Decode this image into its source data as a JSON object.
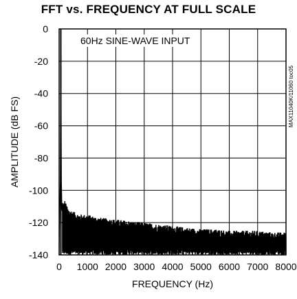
{
  "chart_data": {
    "type": "line",
    "title": "FFT vs. FREQUENCY AT FULL SCALE",
    "xlabel": "FREQUENCY (Hz)",
    "ylabel": "AMPLITUDE (dB FS)",
    "xlim": [
      0,
      8000
    ],
    "ylim": [
      -140,
      0
    ],
    "xticks": [
      "0",
      "1000",
      "2000",
      "3000",
      "4000",
      "5000",
      "6000",
      "7000",
      "8000"
    ],
    "yticks": [
      "0",
      "-20",
      "-40",
      "-60",
      "-80",
      "-100",
      "-120",
      "-140"
    ],
    "grid": true,
    "annotation": "60Hz SINE-WAVE INPUT",
    "side_code": "MAX11040K/11060 toc05",
    "series": [
      {
        "x": [
          0,
          20,
          40,
          60,
          80,
          100,
          150,
          200,
          300,
          400,
          500,
          600,
          800,
          1000,
          1200,
          1500,
          2000,
          2500,
          3000,
          3500,
          4000,
          4500,
          5000,
          5500,
          6000,
          6500,
          7000,
          7500,
          8000
        ],
        "y": [
          -140,
          -110,
          -95,
          0,
          -95,
          -112,
          -115,
          -113,
          -118,
          -119,
          -120,
          -121,
          -122,
          -122,
          -123,
          -124,
          -125,
          -126,
          -127,
          -128,
          -129,
          -130,
          -131,
          -131,
          -132,
          -132,
          -132,
          -133,
          -133
        ]
      }
    ]
  }
}
